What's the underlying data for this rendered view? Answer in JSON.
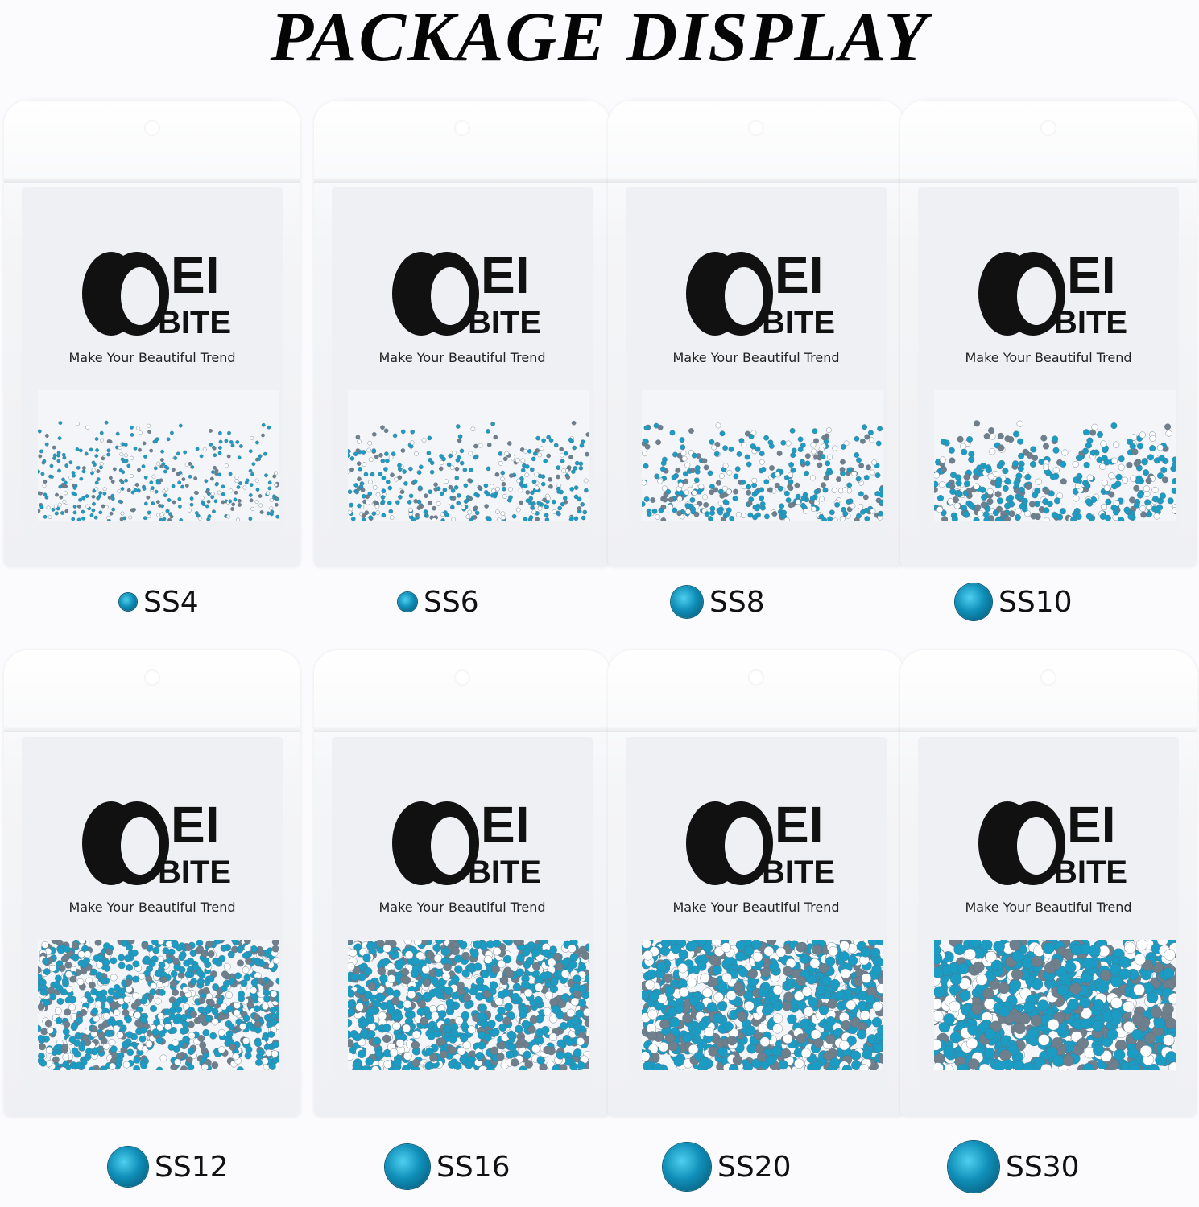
{
  "title": "PACKAGE DISPLAY",
  "brand": {
    "logo_text": "OEI BITE",
    "tagline": "Make Your Beautiful Trend"
  },
  "accent_color": "#1592b8",
  "packages": [
    {
      "size": "SS4"
    },
    {
      "size": "SS6"
    },
    {
      "size": "SS8"
    },
    {
      "size": "SS10"
    },
    {
      "size": "SS12"
    },
    {
      "size": "SS16"
    },
    {
      "size": "SS20"
    },
    {
      "size": "SS30"
    }
  ]
}
